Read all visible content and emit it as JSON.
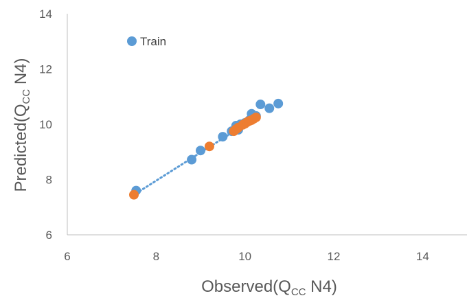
{
  "chart_data": {
    "type": "scatter",
    "xlabel": {
      "pre": "Observed(Q",
      "sub": "CC",
      "post": " N4)"
    },
    "ylabel": {
      "pre": "Predicted(Q",
      "sub": "CC",
      "post": " N4)"
    },
    "xlim": [
      6,
      15
    ],
    "ylim": [
      6,
      14
    ],
    "xticks": [
      "6",
      "8",
      "10",
      "12",
      "14"
    ],
    "yticks": [
      "6",
      "8",
      "10",
      "12",
      "14"
    ],
    "grid": false,
    "legend": {
      "placement": "top-left"
    },
    "series": [
      {
        "name": "Train",
        "color": "#5b9bd5",
        "points": [
          [
            7.55,
            7.6
          ],
          [
            8.8,
            8.72
          ],
          [
            9.0,
            9.05
          ],
          [
            9.5,
            9.55
          ],
          [
            9.7,
            9.75
          ],
          [
            9.8,
            9.95
          ],
          [
            9.85,
            9.8
          ],
          [
            9.9,
            10.0
          ],
          [
            10.0,
            10.05
          ],
          [
            10.1,
            10.15
          ],
          [
            10.15,
            10.38
          ],
          [
            10.25,
            10.3
          ],
          [
            10.35,
            10.72
          ],
          [
            10.55,
            10.58
          ],
          [
            10.75,
            10.75
          ]
        ]
      },
      {
        "color": "#ed7d31",
        "points": [
          [
            7.5,
            7.45
          ],
          [
            9.2,
            9.2
          ],
          [
            9.75,
            9.75
          ],
          [
            9.8,
            9.82
          ],
          [
            9.85,
            9.88
          ],
          [
            9.95,
            9.98
          ],
          [
            10.0,
            10.02
          ],
          [
            10.05,
            10.08
          ],
          [
            10.1,
            10.12
          ],
          [
            10.15,
            10.15
          ],
          [
            10.2,
            10.2
          ],
          [
            10.25,
            10.25
          ]
        ]
      }
    ],
    "trendline": {
      "style": "dotted",
      "color": "#5b9bd5",
      "from": [
        7.55,
        7.5
      ],
      "to": [
        10.3,
        10.3
      ]
    }
  }
}
